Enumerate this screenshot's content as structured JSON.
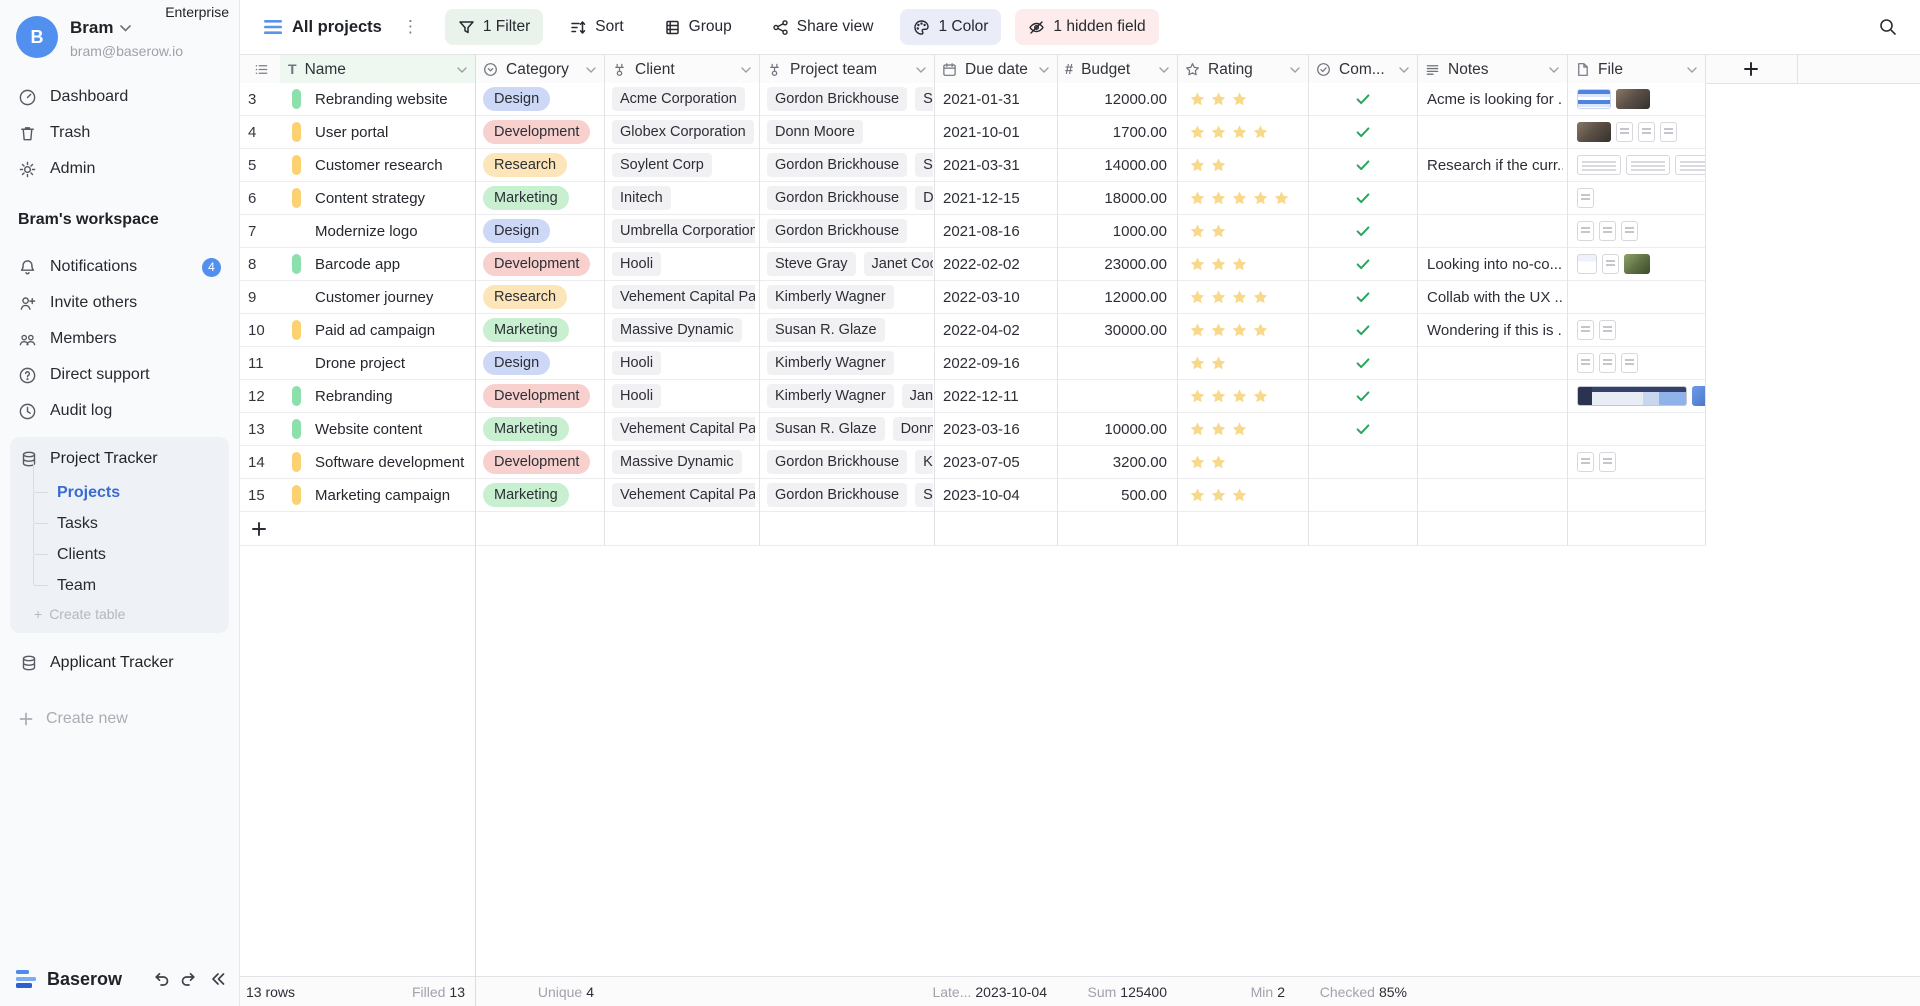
{
  "sidebar": {
    "enterprise_label": "Enterprise",
    "user": {
      "initial": "B",
      "name": "Bram",
      "email": "bram@baserow.io"
    },
    "top_items": [
      {
        "label": "Dashboard"
      },
      {
        "label": "Trash"
      },
      {
        "label": "Admin"
      }
    ],
    "workspace": {
      "title": "Bram's workspace",
      "items": [
        {
          "label": "Notifications",
          "badge": "4"
        },
        {
          "label": "Invite others"
        },
        {
          "label": "Members"
        },
        {
          "label": "Direct support"
        },
        {
          "label": "Audit log"
        }
      ]
    },
    "databases": [
      {
        "label": "Project Tracker",
        "tables": [
          {
            "label": "Projects",
            "active": true
          },
          {
            "label": "Tasks"
          },
          {
            "label": "Clients"
          },
          {
            "label": "Team"
          }
        ],
        "create_label": "Create table"
      },
      {
        "label": "Applicant Tracker",
        "tables": []
      }
    ],
    "create_new_label": "Create new",
    "brand": "Baserow"
  },
  "toolbar": {
    "view_name": "All projects",
    "filter_label": "1 Filter",
    "sort_label": "Sort",
    "group_label": "Group",
    "share_label": "Share view",
    "color_label": "1 Color",
    "hidden_label": "1 hidden field"
  },
  "grid": {
    "columns": [
      {
        "key": "name",
        "label": "Name",
        "icon": "text-field-icon"
      },
      {
        "key": "category",
        "label": "Category",
        "icon": "single-select-icon"
      },
      {
        "key": "client",
        "label": "Client",
        "icon": "link-row-icon"
      },
      {
        "key": "team",
        "label": "Project team",
        "icon": "link-row-icon"
      },
      {
        "key": "due",
        "label": "Due date",
        "icon": "calendar-icon"
      },
      {
        "key": "budget",
        "label": "Budget",
        "icon": "number-icon"
      },
      {
        "key": "rating",
        "label": "Rating",
        "icon": "star-icon"
      },
      {
        "key": "completed",
        "label": "Com...",
        "icon": "check-circle-icon"
      },
      {
        "key": "notes",
        "label": "Notes",
        "icon": "long-text-icon"
      },
      {
        "key": "file",
        "label": "File",
        "icon": "file-icon"
      }
    ],
    "category_colors": {
      "Design": "#cdd7f6",
      "Development": "#f8d0cd",
      "Research": "#fce5b8",
      "Marketing": "#c8f0d0"
    },
    "bar_colors": {
      "green": "#8ce0ac",
      "yellow": "#fcd172"
    },
    "star_color": "#f8d88a",
    "check_color": "#28a55b",
    "rows": [
      {
        "num": "3",
        "bar": "green",
        "name": "Rebranding website",
        "category": "Design",
        "client": "Acme Corporation",
        "team": [
          "Gordon Brickhouse",
          "Sus"
        ],
        "due": "2021-01-31",
        "budget": "12000.00",
        "rating": 3,
        "completed": true,
        "notes": "Acme is looking for ...",
        "files": [
          "sheet-blue",
          "photo-people"
        ]
      },
      {
        "num": "4",
        "bar": "yellow",
        "name": "User portal",
        "category": "Development",
        "client": "Globex Corporation",
        "team": [
          "Donn Moore"
        ],
        "due": "2021-10-01",
        "budget": "1700.00",
        "rating": 4,
        "completed": true,
        "notes": "",
        "files": [
          "photo-people",
          "doc",
          "doc",
          "doc"
        ]
      },
      {
        "num": "5",
        "bar": "yellow",
        "name": "Customer research",
        "category": "Research",
        "client": "Soylent Corp",
        "team": [
          "Gordon Brickhouse",
          "Ste"
        ],
        "due": "2021-03-31",
        "budget": "14000.00",
        "rating": 2,
        "completed": true,
        "notes": "Research if the curr...",
        "files": [
          "wide-doc",
          "wide-doc",
          "wide-doc",
          "wide-doc"
        ]
      },
      {
        "num": "6",
        "bar": "yellow",
        "name": "Content strategy",
        "category": "Marketing",
        "client": "Initech",
        "team": [
          "Gordon Brickhouse",
          "Don"
        ],
        "due": "2021-12-15",
        "budget": "18000.00",
        "rating": 5,
        "completed": true,
        "notes": "",
        "files": [
          "doc"
        ]
      },
      {
        "num": "7",
        "bar": null,
        "name": "Modernize logo",
        "category": "Design",
        "client": "Umbrella Corporation",
        "team": [
          "Gordon Brickhouse"
        ],
        "due": "2021-08-16",
        "budget": "1000.00",
        "rating": 2,
        "completed": true,
        "notes": "",
        "files": [
          "doc",
          "doc",
          "doc"
        ]
      },
      {
        "num": "8",
        "bar": "green",
        "name": "Barcode app",
        "category": "Development",
        "client": "Hooli",
        "team": [
          "Steve Gray",
          "Janet Cook"
        ],
        "due": "2022-02-02",
        "budget": "23000.00",
        "rating": 3,
        "completed": true,
        "notes": "Looking into no-co...",
        "files": [
          "sheet-light",
          "doc",
          "photo-green"
        ]
      },
      {
        "num": "9",
        "bar": null,
        "name": "Customer journey",
        "category": "Research",
        "client": "Vehement Capital Pa...",
        "team": [
          "Kimberly Wagner"
        ],
        "due": "2022-03-10",
        "budget": "12000.00",
        "rating": 4,
        "completed": true,
        "notes": "Collab with the UX ...",
        "files": []
      },
      {
        "num": "10",
        "bar": "yellow",
        "name": "Paid ad campaign",
        "category": "Marketing",
        "client": "Massive Dynamic",
        "team": [
          "Susan R. Glaze"
        ],
        "due": "2022-04-02",
        "budget": "30000.00",
        "rating": 4,
        "completed": true,
        "notes": "Wondering if this is ...",
        "files": [
          "doc",
          "doc"
        ]
      },
      {
        "num": "11",
        "bar": null,
        "name": "Drone project",
        "category": "Design",
        "client": "Hooli",
        "team": [
          "Kimberly Wagner"
        ],
        "due": "2022-09-16",
        "budget": "",
        "rating": 2,
        "completed": true,
        "notes": "",
        "files": [
          "doc",
          "doc",
          "doc"
        ]
      },
      {
        "num": "12",
        "bar": "green",
        "name": "Rebranding",
        "category": "Development",
        "client": "Hooli",
        "team": [
          "Kimberly Wagner",
          "Janet"
        ],
        "due": "2022-12-11",
        "budget": "",
        "rating": 4,
        "completed": true,
        "notes": "",
        "files": [
          "screenshot",
          "photo-blue"
        ]
      },
      {
        "num": "13",
        "bar": "green",
        "name": "Website content",
        "category": "Marketing",
        "client": "Vehement Capital Pa...",
        "team": [
          "Susan R. Glaze",
          "Donn M"
        ],
        "due": "2023-03-16",
        "budget": "10000.00",
        "rating": 3,
        "completed": true,
        "notes": "",
        "files": []
      },
      {
        "num": "14",
        "bar": "yellow",
        "name": "Software development",
        "category": "Development",
        "client": "Massive Dynamic",
        "team": [
          "Gordon Brickhouse",
          "Kim"
        ],
        "due": "2023-07-05",
        "budget": "3200.00",
        "rating": 2,
        "completed": false,
        "notes": "",
        "files": [
          "doc",
          "doc"
        ]
      },
      {
        "num": "15",
        "bar": "yellow",
        "name": "Marketing campaign",
        "category": "Marketing",
        "client": "Vehement Capital Pa...",
        "team": [
          "Gordon Brickhouse",
          "Sus"
        ],
        "due": "2023-10-04",
        "budget": "500.00",
        "rating": 3,
        "completed": false,
        "notes": "",
        "files": []
      }
    ]
  },
  "footer": {
    "rows_count": "13 rows",
    "stats": [
      {
        "label": "Filled",
        "value": "13"
      },
      {
        "label": "Unique",
        "value": "4"
      },
      {
        "label": "Late...",
        "value": "2023-10-04"
      },
      {
        "label": "Sum",
        "value": "125400"
      },
      {
        "label": "Min",
        "value": "2"
      },
      {
        "label": "Checked",
        "value": "85%"
      }
    ]
  }
}
